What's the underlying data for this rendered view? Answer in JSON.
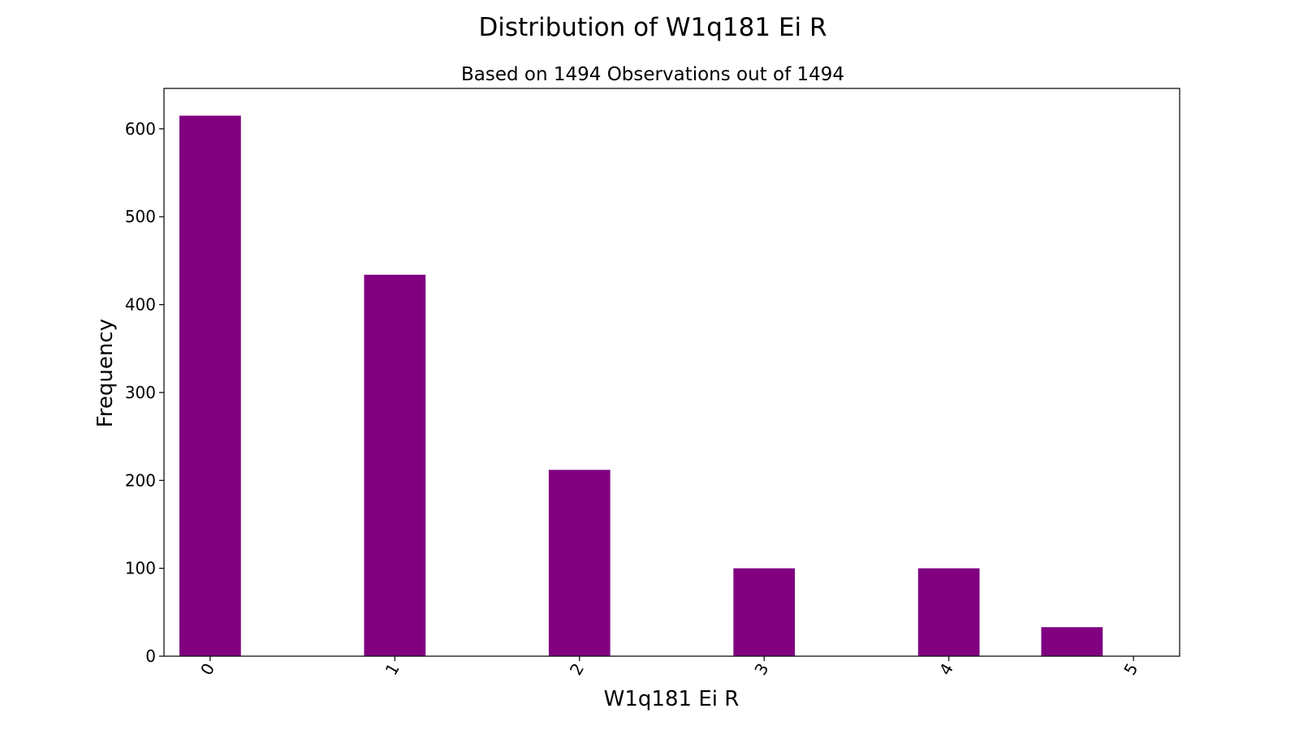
{
  "chart_data": {
    "type": "bar",
    "title": "Distribution of W1q181 Ei R",
    "subtitle": "Based on 1494 Observations out of 1494",
    "xlabel": "W1q181 Ei R",
    "ylabel": "Frequency",
    "x_ticks": [
      "0",
      "1",
      "2",
      "3",
      "4",
      "5"
    ],
    "y_ticks": [
      "0",
      "100",
      "200",
      "300",
      "400",
      "500",
      "600"
    ],
    "xlim": [
      -0.25,
      5.25
    ],
    "ylim": [
      0,
      646
    ],
    "bars": [
      {
        "x": 0.0,
        "width": 0.333,
        "value": 615
      },
      {
        "x": 1.0,
        "width": 0.333,
        "value": 434
      },
      {
        "x": 2.0,
        "width": 0.333,
        "value": 212
      },
      {
        "x": 3.0,
        "width": 0.333,
        "value": 100
      },
      {
        "x": 4.0,
        "width": 0.333,
        "value": 100
      },
      {
        "x": 4.667,
        "width": 0.333,
        "value": 33
      }
    ],
    "bar_color": "#800080",
    "grid": false,
    "legend": "none"
  }
}
